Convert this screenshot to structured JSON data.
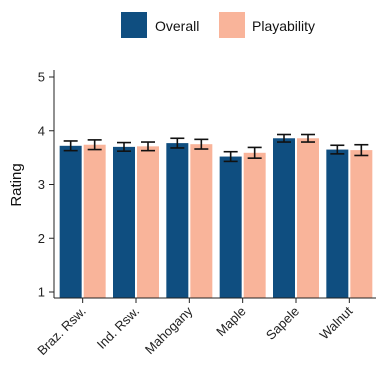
{
  "chart_data": {
    "type": "bar",
    "title": "",
    "xlabel": "",
    "ylabel": "Rating",
    "ylim": [
      1,
      5
    ],
    "yticks": [
      1,
      2,
      3,
      4,
      5
    ],
    "grid": false,
    "legend_position": "top",
    "error_bars": true,
    "categories": [
      "Braz. Rsw.",
      "Ind. Rsw.",
      "Mahogany",
      "Maple",
      "Sapele",
      "Walnut"
    ],
    "series": [
      {
        "name": "Overall",
        "color": "#0f4e80",
        "values": [
          3.72,
          3.7,
          3.77,
          3.52,
          3.86,
          3.65
        ],
        "errors": [
          0.09,
          0.08,
          0.09,
          0.09,
          0.07,
          0.08
        ]
      },
      {
        "name": "Playability",
        "color": "#f9b49a",
        "values": [
          3.74,
          3.71,
          3.75,
          3.59,
          3.86,
          3.64
        ],
        "errors": [
          0.09,
          0.08,
          0.09,
          0.1,
          0.07,
          0.1
        ]
      }
    ]
  }
}
